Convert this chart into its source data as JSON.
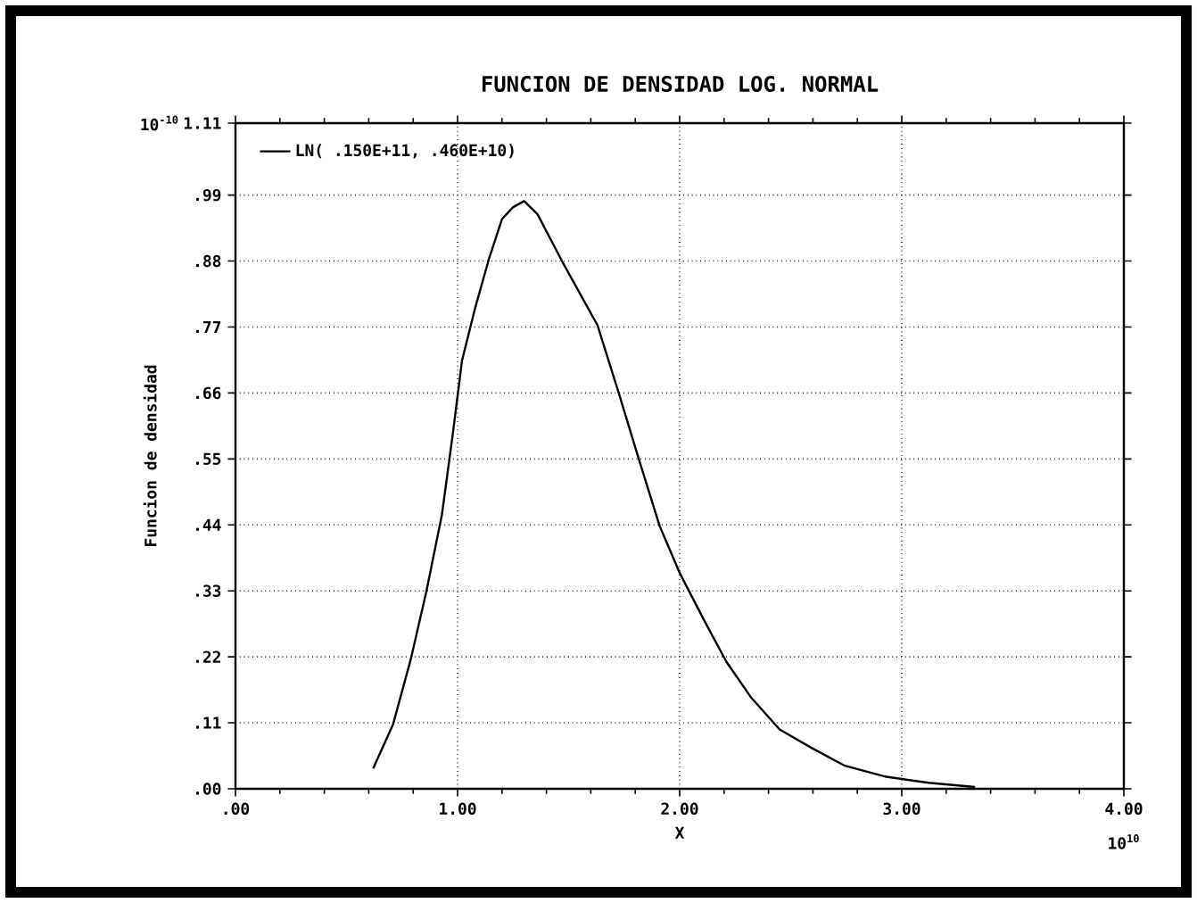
{
  "chart_data": {
    "type": "line",
    "title": "FUNCION DE DENSIDAD LOG. NORMAL",
    "xlabel": "X",
    "ylabel": "Funcion de densidad",
    "annotations": [
      "10$^{-10}$",
      "10$^{10}$"
    ],
    "series": [
      {
        "name": "LN( .150E+11, .460E+10)",
        "color": "#000000",
        "x": [
          0.62,
          0.71,
          0.79,
          0.86,
          0.93,
          0.98,
          1.02,
          1.08,
          1.14,
          1.2,
          1.25,
          1.3,
          1.36,
          1.47,
          1.63,
          1.73,
          1.81,
          1.91,
          2.0,
          2.11,
          2.21,
          2.32,
          2.45,
          2.59,
          2.74,
          2.93,
          3.12,
          3.33
        ],
        "values": [
          0.034,
          0.108,
          0.217,
          0.33,
          0.458,
          0.596,
          0.714,
          0.803,
          0.882,
          0.95,
          0.97,
          0.98,
          0.958,
          0.88,
          0.773,
          0.655,
          0.557,
          0.438,
          0.36,
          0.281,
          0.212,
          0.153,
          0.099,
          0.069,
          0.039,
          0.02,
          0.01,
          0.003
        ]
      }
    ],
    "xlim": [
      0,
      4
    ],
    "ylim": [
      0,
      1.11
    ],
    "xticks": [
      {
        "value": 0,
        "label": ".00"
      },
      {
        "value": 1,
        "label": "1.00"
      },
      {
        "value": 2,
        "label": "2.00"
      },
      {
        "value": 3,
        "label": "3.00"
      },
      {
        "value": 4,
        "label": "4.00"
      }
    ],
    "yticks": [
      {
        "value": 0,
        "label": ".00"
      },
      {
        "value": 0.11,
        "label": ".11"
      },
      {
        "value": 0.22,
        "label": ".22"
      },
      {
        "value": 0.33,
        "label": ".33"
      },
      {
        "value": 0.44,
        "label": ".44"
      },
      {
        "value": 0.55,
        "label": ".55"
      },
      {
        "value": 0.66,
        "label": ".66"
      },
      {
        "value": 0.77,
        "label": ".77"
      },
      {
        "value": 0.88,
        "label": ".88"
      },
      {
        "value": 0.99,
        "label": ".99"
      },
      {
        "value": 1.11,
        "label": "1.11"
      }
    ],
    "grid": true,
    "legend": "top left",
    "marker": "none",
    "line_style": "solid"
  }
}
